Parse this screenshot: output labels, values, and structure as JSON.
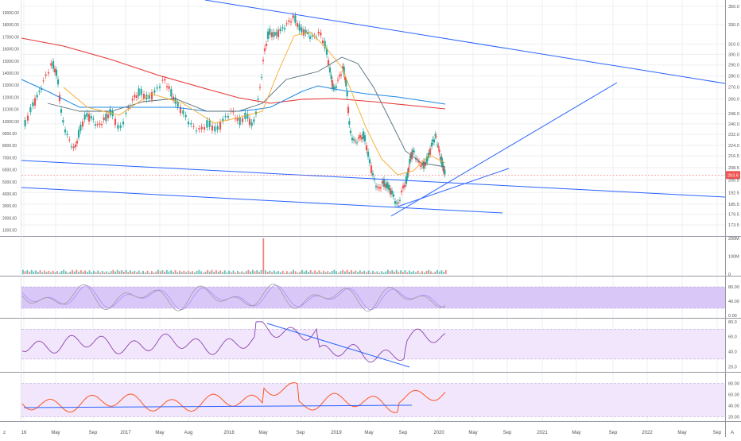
{
  "colors": {
    "background": "#ffffff",
    "grid": "#eceff3",
    "separator": "#9598a1",
    "up": "#26a69a",
    "down": "#ef5350",
    "axis_text": "#555555",
    "trendline": "#2962ff",
    "ma_red": "#e53935",
    "ma_orange": "#f9a825",
    "ma_gray": "#546e7a",
    "ma_blue": "#1e88e5",
    "band_purple": "#d9c8f7",
    "band_light": "#f1e6fb",
    "stoch_k": "#9c9c9c",
    "stoch_d": "#b388ff",
    "rsi_line": "#8e44ad",
    "osc_orange": "#ff5722",
    "price_badge": "#ef5350"
  },
  "price_axis_left_labels": [
    "19000.00",
    "18000.00",
    "17000.00",
    "16000.00",
    "15000.00",
    "14000.00",
    "13000.00",
    "12000.00",
    "11000.00",
    "10000.00",
    "9000.00",
    "8000.00",
    "7000.00",
    "6000.00",
    "5000.00",
    "4000.00",
    "3000.00",
    "2000.00",
    "1000.00"
  ],
  "price_axis_right_labels": [
    "350.0",
    "330.0",
    "310.0",
    "300.0",
    "290.0",
    "280.0",
    "270.0",
    "260.0",
    "248.0",
    "240.0",
    "232.0",
    "224.0",
    "216.5",
    "208.5",
    "200.5",
    "192.5",
    "185.5",
    "179.5",
    "173.5"
  ],
  "last_price_label": "203.6",
  "volume_axis_labels": [
    "200M",
    "100M",
    "0"
  ],
  "stoch_axis_labels": [
    "80.00",
    "40.00",
    "0.00"
  ],
  "rsi_axis_labels": [
    "80.0",
    "60.0",
    "40.0",
    "20.0"
  ],
  "osc_axis_labels": [
    "80.00",
    "60.00",
    "40.00",
    "20.00"
  ],
  "time_axis_labels": [
    "16",
    "May",
    "Sep",
    "2017",
    "May",
    "Aug",
    "2018",
    "May",
    "Sep",
    "2019",
    "May",
    "Sep",
    "2020",
    "May",
    "Sep",
    "2021",
    "May",
    "Sep",
    "2022",
    "May",
    "Sep"
  ],
  "corner_left_icon": "z",
  "corner_right_icon": "A",
  "chart_data": {
    "type": "candlestick",
    "title": "",
    "grid": true,
    "y_scale": "log",
    "series": [
      {
        "pane": "price",
        "kind": "ohlc",
        "x_range": [
          "2016-01",
          "2020-01"
        ],
        "last": 203.6,
        "high": 343,
        "low": 177
      },
      {
        "pane": "price",
        "kind": "moving_average",
        "color": "red"
      },
      {
        "pane": "price",
        "kind": "moving_average",
        "color": "orange"
      },
      {
        "pane": "price",
        "kind": "moving_average",
        "color": "gray"
      },
      {
        "pane": "price",
        "kind": "moving_average",
        "color": "blue"
      },
      {
        "pane": "volume",
        "kind": "histogram",
        "max": 200,
        "unit": "M"
      },
      {
        "pane": "stochastic",
        "kind": "oscillator",
        "band": [
          20,
          80
        ]
      },
      {
        "pane": "rsi",
        "kind": "oscillator",
        "band": [
          30,
          70
        ]
      },
      {
        "pane": "oscillator",
        "kind": "oscillator",
        "band": [
          20,
          80
        ]
      }
    ]
  }
}
